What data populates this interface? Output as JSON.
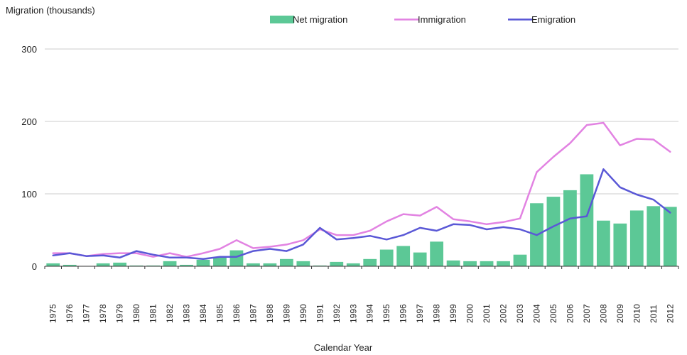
{
  "chart_data": {
    "type": "bar",
    "title": "",
    "ylabel": "Migration (thousands)",
    "xlabel": "Calendar Year",
    "ylim": [
      0,
      300
    ],
    "yticks": [
      0,
      100,
      200,
      300
    ],
    "grid": "horizontal",
    "legend_position": "top",
    "categories": [
      "1975",
      "1976",
      "1977",
      "1978",
      "1979",
      "1980",
      "1981",
      "1982",
      "1983",
      "1984",
      "1985",
      "1986",
      "1987",
      "1988",
      "1989",
      "1990",
      "1991",
      "1992",
      "1993",
      "1994",
      "1995",
      "1996",
      "1997",
      "1998",
      "1999",
      "2000",
      "2001",
      "2002",
      "2003",
      "2004",
      "2005",
      "2006",
      "2007",
      "2008",
      "2009",
      "2010",
      "2011",
      "2012"
    ],
    "series": [
      {
        "name": "Net migration",
        "kind": "bar",
        "color": "#5cc896",
        "values": [
          4,
          2,
          0,
          4,
          5,
          1,
          1,
          7,
          2,
          9,
          12,
          22,
          4,
          4,
          10,
          7,
          1,
          6,
          4,
          10,
          23,
          28,
          19,
          34,
          8,
          7,
          7,
          7,
          16,
          87,
          96,
          105,
          127,
          63,
          59,
          77,
          83,
          82
        ]
      },
      {
        "name": "Immigration",
        "kind": "line",
        "color": "#e283e2",
        "values": [
          18,
          18,
          14,
          17,
          18,
          18,
          13,
          18,
          13,
          18,
          24,
          36,
          25,
          27,
          30,
          36,
          51,
          43,
          43,
          49,
          62,
          72,
          70,
          82,
          65,
          62,
          58,
          61,
          66,
          130,
          151,
          170,
          195,
          198,
          167,
          176,
          175,
          158
        ]
      },
      {
        "name": "Emigration",
        "kind": "line",
        "color": "#5a58d6",
        "values": [
          15,
          18,
          14,
          15,
          12,
          21,
          16,
          12,
          12,
          10,
          13,
          13,
          21,
          24,
          21,
          30,
          53,
          37,
          39,
          42,
          37,
          43,
          53,
          49,
          58,
          57,
          51,
          54,
          51,
          43,
          55,
          66,
          69,
          134,
          109,
          99,
          92,
          74
        ]
      }
    ]
  }
}
